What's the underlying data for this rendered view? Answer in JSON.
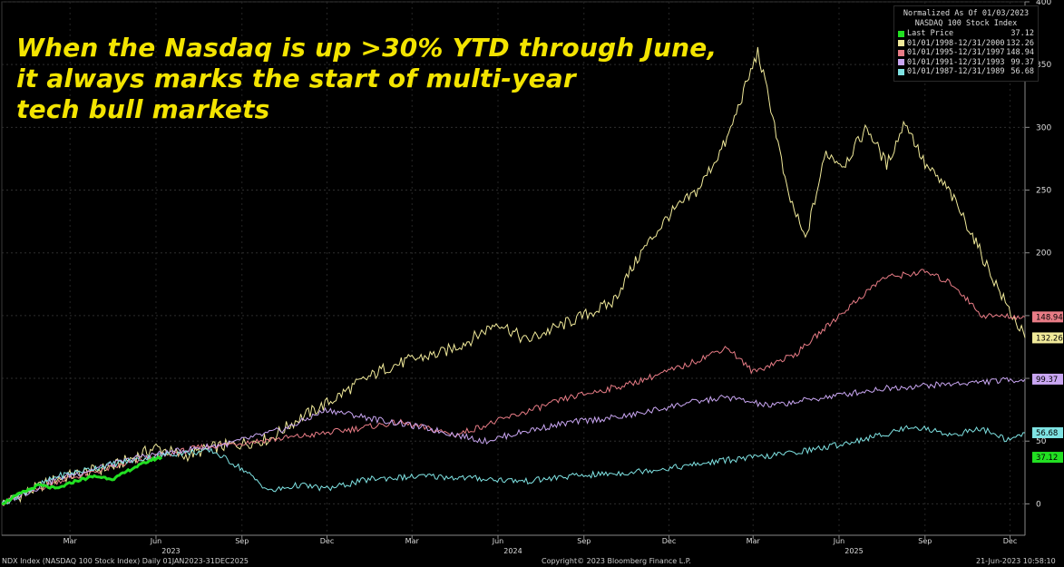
{
  "headline": {
    "line1": "When the Nasdaq is up >30% YTD through June,",
    "line2": "it always marks the start of multi-year",
    "line3": "tech bull markets"
  },
  "legend": {
    "header1": "Normalized As Of 01/03/2023",
    "header2": "NASDAQ 100 Stock Index",
    "items": [
      {
        "label": "Last Price",
        "value": "37.12",
        "color": "#22e022"
      },
      {
        "label": "01/01/1998-12/31/2000",
        "value": "132.26",
        "color": "#f1ea9a"
      },
      {
        "label": "01/01/1995-12/31/1997",
        "value": "148.94",
        "color": "#e87c86"
      },
      {
        "label": "01/01/1991-12/31/1993",
        "value": "99.37",
        "color": "#c9a6f2"
      },
      {
        "label": "01/01/1987-12/31/1989",
        "value": "56.68",
        "color": "#7fe3e3"
      }
    ]
  },
  "footer": {
    "left": "NDX Index (NASDAQ 100 Stock Index)  Daily 01JAN2023-31DEC2025",
    "center": "Copyright© 2023 Bloomberg Finance L.P.",
    "right": "21-Jun-2023 10:58:10"
  },
  "chart_data": {
    "type": "line",
    "x_range": [
      "2023-01-01",
      "2025-12-31"
    ],
    "ylim": [
      -25,
      400
    ],
    "y_ticks": [
      0,
      50,
      100,
      150,
      200,
      250,
      300,
      350,
      400
    ],
    "x_tick_labels": [
      "Mar",
      "Jun",
      "Sep",
      "Dec",
      "Mar",
      "Jun",
      "Sep",
      "Dec",
      "Mar",
      "Jun",
      "Sep",
      "Dec"
    ],
    "year_labels": [
      "2023",
      "2024",
      "2025"
    ],
    "series": [
      {
        "name": "01/01/1998-12/31/2000",
        "color": "#f1ea9a",
        "last_value": 132.26,
        "points": [
          [
            "2023-01-01",
            0
          ],
          [
            "2023-03-01",
            20
          ],
          [
            "2023-05-01",
            30
          ],
          [
            "2023-06-15",
            45
          ],
          [
            "2023-07-15",
            38
          ],
          [
            "2023-08-15",
            45
          ],
          [
            "2023-09-15",
            48
          ],
          [
            "2023-10-15",
            52
          ],
          [
            "2023-11-15",
            68
          ],
          [
            "2023-12-15",
            80
          ],
          [
            "2024-01-15",
            95
          ],
          [
            "2024-02-15",
            108
          ],
          [
            "2024-03-15",
            115
          ],
          [
            "2024-04-15",
            120
          ],
          [
            "2024-05-15",
            130
          ],
          [
            "2024-06-15",
            145
          ],
          [
            "2024-07-15",
            130
          ],
          [
            "2024-08-15",
            140
          ],
          [
            "2024-09-15",
            150
          ],
          [
            "2024-10-15",
            160
          ],
          [
            "2024-11-15",
            200
          ],
          [
            "2024-12-15",
            230
          ],
          [
            "2025-01-15",
            250
          ],
          [
            "2025-02-15",
            290
          ],
          [
            "2025-03-01",
            320
          ],
          [
            "2025-03-20",
            360
          ],
          [
            "2025-04-05",
            310
          ],
          [
            "2025-04-20",
            250
          ],
          [
            "2025-05-10",
            210
          ],
          [
            "2025-06-01",
            280
          ],
          [
            "2025-06-20",
            270
          ],
          [
            "2025-07-15",
            300
          ],
          [
            "2025-08-05",
            270
          ],
          [
            "2025-08-25",
            305
          ],
          [
            "2025-09-15",
            270
          ],
          [
            "2025-10-10",
            250
          ],
          [
            "2025-11-01",
            220
          ],
          [
            "2025-11-20",
            190
          ],
          [
            "2025-12-10",
            160
          ],
          [
            "2025-12-31",
            132.26
          ]
        ]
      },
      {
        "name": "01/01/1995-12/31/1997",
        "color": "#e87c86",
        "last_value": 148.94,
        "points": [
          [
            "2023-01-01",
            0
          ],
          [
            "2023-03-01",
            18
          ],
          [
            "2023-06-01",
            35
          ],
          [
            "2023-08-01",
            45
          ],
          [
            "2023-10-01",
            50
          ],
          [
            "2023-12-01",
            55
          ],
          [
            "2024-01-15",
            60
          ],
          [
            "2024-03-01",
            65
          ],
          [
            "2024-05-01",
            55
          ],
          [
            "2024-07-01",
            70
          ],
          [
            "2024-09-01",
            85
          ],
          [
            "2024-11-01",
            95
          ],
          [
            "2025-01-01",
            110
          ],
          [
            "2025-02-15",
            125
          ],
          [
            "2025-03-15",
            105
          ],
          [
            "2025-05-01",
            120
          ],
          [
            "2025-06-15",
            150
          ],
          [
            "2025-08-01",
            180
          ],
          [
            "2025-09-15",
            185
          ],
          [
            "2025-10-15",
            175
          ],
          [
            "2025-11-15",
            150
          ],
          [
            "2025-12-31",
            148.94
          ]
        ]
      },
      {
        "name": "01/01/1991-12/31/1993",
        "color": "#c9a6f2",
        "last_value": 99.37,
        "points": [
          [
            "2023-01-01",
            0
          ],
          [
            "2023-03-01",
            20
          ],
          [
            "2023-06-01",
            38
          ],
          [
            "2023-09-01",
            48
          ],
          [
            "2023-11-01",
            60
          ],
          [
            "2023-12-15",
            75
          ],
          [
            "2024-02-01",
            68
          ],
          [
            "2024-04-01",
            60
          ],
          [
            "2024-06-01",
            50
          ],
          [
            "2024-07-15",
            58
          ],
          [
            "2024-09-01",
            65
          ],
          [
            "2024-11-01",
            70
          ],
          [
            "2025-01-01",
            80
          ],
          [
            "2025-02-15",
            85
          ],
          [
            "2025-04-01",
            78
          ],
          [
            "2025-06-01",
            85
          ],
          [
            "2025-08-01",
            92
          ],
          [
            "2025-10-01",
            95
          ],
          [
            "2025-12-31",
            99.37
          ]
        ]
      },
      {
        "name": "01/01/1987-12/31/1989",
        "color": "#7fe3e3",
        "last_value": 56.68,
        "points": [
          [
            "2023-01-01",
            0
          ],
          [
            "2023-03-01",
            22
          ],
          [
            "2023-05-01",
            32
          ],
          [
            "2023-07-01",
            40
          ],
          [
            "2023-08-15",
            42
          ],
          [
            "2023-09-15",
            28
          ],
          [
            "2023-10-15",
            10
          ],
          [
            "2023-11-15",
            15
          ],
          [
            "2023-12-15",
            12
          ],
          [
            "2024-02-01",
            20
          ],
          [
            "2024-04-01",
            22
          ],
          [
            "2024-06-01",
            20
          ],
          [
            "2024-07-15",
            18
          ],
          [
            "2024-09-01",
            22
          ],
          [
            "2024-11-01",
            25
          ],
          [
            "2025-01-01",
            30
          ],
          [
            "2025-02-15",
            35
          ],
          [
            "2025-04-01",
            38
          ],
          [
            "2025-06-01",
            45
          ],
          [
            "2025-08-01",
            55
          ],
          [
            "2025-09-01",
            62
          ],
          [
            "2025-10-15",
            55
          ],
          [
            "2025-11-15",
            60
          ],
          [
            "2025-12-15",
            50
          ],
          [
            "2025-12-31",
            56.68
          ]
        ]
      },
      {
        "name": "Last Price",
        "color": "#22e022",
        "last_value": 37.12,
        "points": [
          [
            "2023-01-01",
            0
          ],
          [
            "2023-01-20",
            8
          ],
          [
            "2023-02-10",
            15
          ],
          [
            "2023-03-01",
            12
          ],
          [
            "2023-03-20",
            18
          ],
          [
            "2023-04-10",
            22
          ],
          [
            "2023-05-01",
            20
          ],
          [
            "2023-05-20",
            28
          ],
          [
            "2023-06-10",
            35
          ],
          [
            "2023-06-21",
            37.12
          ]
        ]
      }
    ]
  }
}
